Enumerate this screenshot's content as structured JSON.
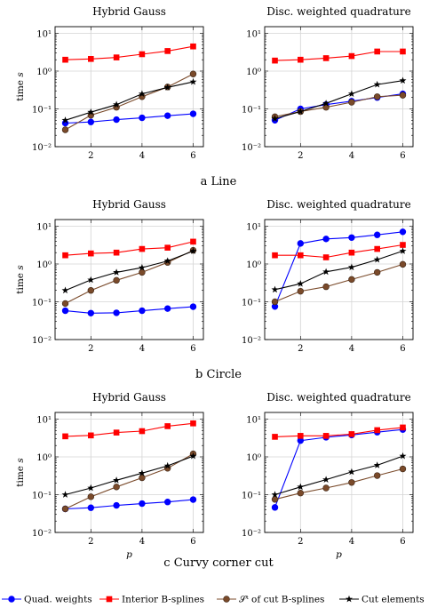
{
  "chart_data": [
    {
      "type": "line",
      "panel": "a",
      "row": 0,
      "col": 0,
      "title": "Hybrid Gauss",
      "ylabel": "time s",
      "xlabel": "",
      "x": [
        1,
        2,
        3,
        4,
        5,
        6
      ],
      "yscale": "log",
      "ylim": [
        0.01,
        15
      ],
      "xlim": [
        0.6,
        6.4
      ],
      "x_ticks": [
        "2",
        "4",
        "6"
      ],
      "series": [
        {
          "name": "Quad. weights",
          "values": [
            0.042,
            0.045,
            0.052,
            0.058,
            0.066,
            0.074
          ]
        },
        {
          "name": "Interior B-splines",
          "values": [
            2.0,
            2.1,
            2.3,
            2.8,
            3.4,
            4.5
          ]
        },
        {
          "name": "S^τ of cut B-splines",
          "values": [
            0.028,
            0.068,
            0.11,
            0.21,
            0.38,
            0.84
          ]
        },
        {
          "name": "Cut elements",
          "values": [
            0.05,
            0.082,
            0.13,
            0.25,
            0.37,
            0.52
          ]
        }
      ]
    },
    {
      "type": "line",
      "panel": "a",
      "row": 0,
      "col": 1,
      "title": "Disc. weighted quadrature",
      "ylabel": "",
      "xlabel": "",
      "x": [
        1,
        2,
        3,
        4,
        5,
        6
      ],
      "yscale": "log",
      "ylim": [
        0.01,
        15
      ],
      "xlim": [
        0.6,
        6.4
      ],
      "x_ticks": [
        "2",
        "4",
        "6"
      ],
      "series": [
        {
          "name": "Quad. weights",
          "values": [
            0.05,
            0.1,
            0.13,
            0.16,
            0.2,
            0.25
          ]
        },
        {
          "name": "Interior B-splines",
          "values": [
            1.9,
            2.0,
            2.2,
            2.5,
            3.3,
            3.3
          ]
        },
        {
          "name": "S^τ of cut B-splines",
          "values": [
            0.062,
            0.085,
            0.11,
            0.15,
            0.21,
            0.23
          ]
        },
        {
          "name": "Cut elements",
          "values": [
            0.055,
            0.085,
            0.14,
            0.25,
            0.44,
            0.56
          ]
        }
      ]
    },
    {
      "type": "line",
      "panel": "b",
      "row": 1,
      "col": 0,
      "title": "Hybrid Gauss",
      "ylabel": "time s",
      "xlabel": "",
      "x": [
        1,
        2,
        3,
        4,
        5,
        6
      ],
      "yscale": "log",
      "ylim": [
        0.01,
        15
      ],
      "xlim": [
        0.6,
        6.4
      ],
      "x_ticks": [
        "2",
        "4",
        "6"
      ],
      "series": [
        {
          "name": "Quad. weights",
          "values": [
            0.058,
            0.05,
            0.051,
            0.058,
            0.066,
            0.074
          ]
        },
        {
          "name": "Interior B-splines",
          "values": [
            1.7,
            1.9,
            2.0,
            2.5,
            2.7,
            3.9
          ]
        },
        {
          "name": "S^τ of cut B-splines",
          "values": [
            0.09,
            0.2,
            0.37,
            0.6,
            1.1,
            2.3
          ]
        },
        {
          "name": "Cut elements",
          "values": [
            0.2,
            0.38,
            0.6,
            0.8,
            1.2,
            2.2
          ]
        }
      ]
    },
    {
      "type": "line",
      "panel": "b",
      "row": 1,
      "col": 1,
      "title": "Disc. weighted quadrature",
      "ylabel": "",
      "xlabel": "",
      "x": [
        1,
        2,
        3,
        4,
        5,
        6
      ],
      "yscale": "log",
      "ylim": [
        0.01,
        15
      ],
      "xlim": [
        0.6,
        6.4
      ],
      "x_ticks": [
        "2",
        "4",
        "6"
      ],
      "series": [
        {
          "name": "Quad. weights",
          "values": [
            0.075,
            3.5,
            4.6,
            5.0,
            5.9,
            7.1
          ]
        },
        {
          "name": "Interior B-splines",
          "values": [
            1.7,
            1.7,
            1.5,
            2.0,
            2.5,
            3.2
          ]
        },
        {
          "name": "S^τ of cut B-splines",
          "values": [
            0.1,
            0.19,
            0.25,
            0.39,
            0.6,
            0.98
          ]
        },
        {
          "name": "Cut elements",
          "values": [
            0.21,
            0.3,
            0.62,
            0.82,
            1.3,
            2.2
          ]
        }
      ]
    },
    {
      "type": "line",
      "panel": "c",
      "row": 2,
      "col": 0,
      "title": "Hybrid Gauss",
      "ylabel": "time s",
      "xlabel": "p",
      "x": [
        1,
        2,
        3,
        4,
        5,
        6
      ],
      "yscale": "log",
      "ylim": [
        0.01,
        15
      ],
      "xlim": [
        0.6,
        6.4
      ],
      "x_ticks": [
        "2",
        "4",
        "6"
      ],
      "series": [
        {
          "name": "Quad. weights",
          "values": [
            0.042,
            0.045,
            0.052,
            0.058,
            0.064,
            0.074
          ]
        },
        {
          "name": "Interior B-splines",
          "values": [
            3.5,
            3.7,
            4.4,
            4.8,
            6.5,
            7.7
          ]
        },
        {
          "name": "S^τ of cut B-splines",
          "values": [
            0.042,
            0.088,
            0.16,
            0.28,
            0.5,
            1.2
          ]
        },
        {
          "name": "Cut elements",
          "values": [
            0.1,
            0.15,
            0.24,
            0.37,
            0.58,
            1.05
          ]
        }
      ]
    },
    {
      "type": "line",
      "panel": "c",
      "row": 2,
      "col": 1,
      "title": "Disc. weighted quadrature",
      "ylabel": "",
      "xlabel": "p",
      "x": [
        1,
        2,
        3,
        4,
        5,
        6
      ],
      "yscale": "log",
      "ylim": [
        0.01,
        15
      ],
      "xlim": [
        0.6,
        6.4
      ],
      "x_ticks": [
        "2",
        "4",
        "6"
      ],
      "series": [
        {
          "name": "Quad. weights",
          "values": [
            0.046,
            2.7,
            3.3,
            3.8,
            4.5,
            5.3
          ]
        },
        {
          "name": "Interior B-splines",
          "values": [
            3.4,
            3.6,
            3.6,
            4.0,
            5.1,
            6.0
          ]
        },
        {
          "name": "S^τ of cut B-splines",
          "values": [
            0.075,
            0.11,
            0.15,
            0.21,
            0.32,
            0.48
          ]
        },
        {
          "name": "Cut elements",
          "values": [
            0.1,
            0.16,
            0.25,
            0.4,
            0.6,
            1.05
          ]
        }
      ]
    }
  ],
  "captions": [
    "a Line",
    "b Circle",
    "c Curvy corner cut"
  ],
  "y_ticks": [
    "10⁻²",
    "10⁻¹",
    "10⁰",
    "10¹"
  ],
  "legend": {
    "placement": "bottom",
    "entries": [
      {
        "label": "Quad. weights",
        "color": "#0000ff",
        "marker": "circle"
      },
      {
        "label": "Interior B-splines",
        "color": "#ff0000",
        "marker": "square"
      },
      {
        "label": "𝒮ᵗ of cut B-splines",
        "color": "#7a4a2a",
        "marker": "circle"
      },
      {
        "label": "Cut elements",
        "color": "#000000",
        "marker": "star"
      }
    ]
  },
  "style": {
    "series_colors": [
      "#0000ff",
      "#ff0000",
      "#7a4a2a",
      "#000000"
    ],
    "series_markers": [
      "circle",
      "square",
      "circle",
      "star"
    ],
    "grid": true
  }
}
